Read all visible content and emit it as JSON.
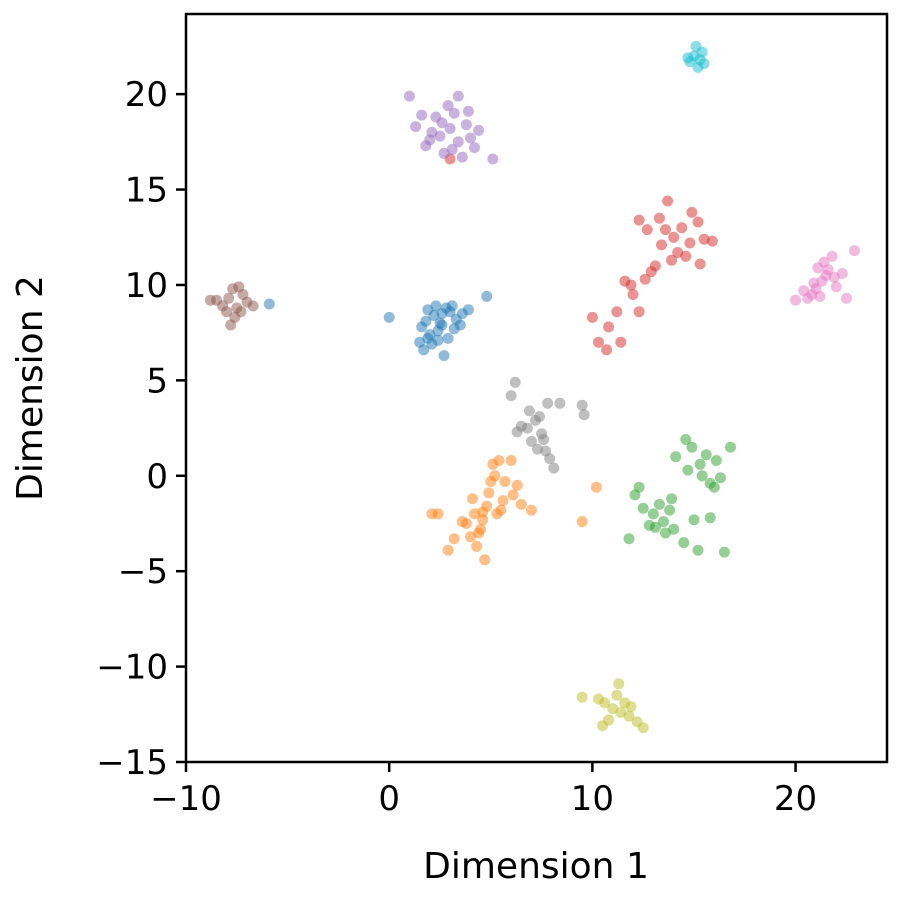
{
  "chart_data": {
    "type": "scatter",
    "title": "",
    "xlabel": "Dimension 1",
    "ylabel": "Dimension 2",
    "xlim": [
      -10,
      24.5
    ],
    "ylim": [
      -15,
      24.2
    ],
    "xticks": [
      -10,
      0,
      10,
      20
    ],
    "xtick_labels": [
      "−10",
      "0",
      "10",
      "20"
    ],
    "yticks": [
      -15,
      -10,
      -5,
      0,
      5,
      10,
      15,
      20
    ],
    "ytick_labels": [
      "−15",
      "−10",
      "−5",
      "0",
      "5",
      "10",
      "15",
      "20"
    ],
    "grid": false,
    "marker_opacity": 0.5,
    "series": [
      {
        "color": "#1f77b4",
        "points": [
          [
            1.8,
            8.1
          ],
          [
            2.2,
            8.4
          ],
          [
            2.6,
            7.9
          ],
          [
            3.0,
            8.6
          ],
          [
            2.4,
            7.6
          ],
          [
            3.3,
            8.2
          ],
          [
            2.0,
            7.4
          ],
          [
            2.8,
            8.8
          ],
          [
            1.6,
            7.8
          ],
          [
            3.6,
            8.5
          ],
          [
            2.5,
            8.0
          ],
          [
            2.9,
            7.2
          ],
          [
            1.9,
            8.7
          ],
          [
            3.2,
            7.7
          ],
          [
            2.1,
            6.9
          ],
          [
            1.5,
            7.0
          ],
          [
            2.7,
            6.3
          ],
          [
            1.7,
            6.6
          ],
          [
            3.9,
            8.7
          ],
          [
            0.0,
            8.3
          ],
          [
            -5.9,
            9.0
          ],
          [
            4.8,
            9.4
          ],
          [
            2.3,
            8.9
          ],
          [
            3.5,
            7.9
          ],
          [
            2.6,
            8.5
          ],
          [
            1.9,
            7.2
          ],
          [
            3.1,
            8.9
          ],
          [
            2.4,
            7.1
          ]
        ]
      },
      {
        "color": "#ff7f0e",
        "points": [
          [
            4.2,
            -2.0
          ],
          [
            4.5,
            -2.8
          ],
          [
            4.8,
            -1.6
          ],
          [
            4.0,
            -3.2
          ],
          [
            4.6,
            -2.3
          ],
          [
            4.9,
            -0.9
          ],
          [
            5.2,
            0.0
          ],
          [
            5.4,
            0.8
          ],
          [
            5.0,
            -0.3
          ],
          [
            4.3,
            -3.7
          ],
          [
            4.7,
            -4.4
          ],
          [
            3.8,
            -2.5
          ],
          [
            5.6,
            -1.3
          ],
          [
            6.1,
            -1.0
          ],
          [
            6.5,
            -1.5
          ],
          [
            7.0,
            -1.8
          ],
          [
            6.0,
            0.8
          ],
          [
            6.3,
            -0.5
          ],
          [
            2.4,
            -2.0
          ],
          [
            2.1,
            -2.0
          ],
          [
            2.9,
            -3.9
          ],
          [
            3.6,
            -2.4
          ],
          [
            4.1,
            -1.2
          ],
          [
            5.3,
            -2.0
          ],
          [
            5.7,
            -0.3
          ],
          [
            4.4,
            -3.0
          ],
          [
            5.1,
            0.6
          ],
          [
            3.2,
            -3.3
          ],
          [
            9.5,
            -2.4
          ],
          [
            10.2,
            -0.6
          ],
          [
            4.6,
            -1.9
          ],
          [
            5.5,
            -1.8
          ]
        ]
      },
      {
        "color": "#2ca02c",
        "points": [
          [
            13.0,
            -2.0
          ],
          [
            13.5,
            -2.4
          ],
          [
            13.8,
            -1.8
          ],
          [
            12.8,
            -2.6
          ],
          [
            13.3,
            -1.5
          ],
          [
            14.0,
            -2.8
          ],
          [
            13.6,
            -3.0
          ],
          [
            12.5,
            -1.7
          ],
          [
            14.5,
            -3.5
          ],
          [
            15.2,
            -3.9
          ],
          [
            15.0,
            -2.3
          ],
          [
            15.8,
            -2.2
          ],
          [
            15.4,
            0.0
          ],
          [
            15.8,
            -0.4
          ],
          [
            16.3,
            -0.1
          ],
          [
            16.8,
            1.5
          ],
          [
            16.1,
            0.8
          ],
          [
            14.7,
            0.3
          ],
          [
            14.6,
            1.9
          ],
          [
            14.1,
            1.0
          ],
          [
            15.6,
            1.1
          ],
          [
            16.5,
            -4.0
          ],
          [
            11.8,
            -3.3
          ],
          [
            12.1,
            -1.0
          ],
          [
            16.0,
            -0.6
          ],
          [
            12.3,
            -0.6
          ],
          [
            14.9,
            1.5
          ],
          [
            13.9,
            -1.2
          ],
          [
            15.3,
            0.6
          ],
          [
            13.1,
            -2.7
          ]
        ]
      },
      {
        "color": "#d62728",
        "points": [
          [
            14.0,
            12.5
          ],
          [
            14.4,
            13.0
          ],
          [
            14.8,
            12.2
          ],
          [
            13.6,
            12.9
          ],
          [
            15.2,
            13.3
          ],
          [
            14.2,
            11.7
          ],
          [
            13.3,
            13.5
          ],
          [
            15.5,
            12.4
          ],
          [
            14.9,
            13.8
          ],
          [
            13.9,
            11.3
          ],
          [
            12.7,
            12.9
          ],
          [
            12.3,
            13.4
          ],
          [
            13.1,
            11.0
          ],
          [
            12.6,
            10.3
          ],
          [
            11.9,
            10.0
          ],
          [
            12.3,
            8.6
          ],
          [
            11.2,
            8.6
          ],
          [
            10.8,
            7.8
          ],
          [
            10.0,
            8.3
          ],
          [
            10.7,
            6.6
          ],
          [
            11.4,
            7.0
          ],
          [
            10.3,
            7.0
          ],
          [
            11.6,
            10.2
          ],
          [
            12.9,
            10.7
          ],
          [
            13.7,
            14.4
          ],
          [
            15.9,
            12.3
          ],
          [
            12.0,
            9.5
          ],
          [
            14.6,
            11.5
          ],
          [
            3.0,
            16.6
          ],
          [
            15.3,
            11.1
          ],
          [
            13.4,
            12.1
          ]
        ]
      },
      {
        "color": "#9467bd",
        "points": [
          [
            2.5,
            17.8
          ],
          [
            3.0,
            18.2
          ],
          [
            3.4,
            17.5
          ],
          [
            2.1,
            18.0
          ],
          [
            3.8,
            18.4
          ],
          [
            2.7,
            16.9
          ],
          [
            3.2,
            19.0
          ],
          [
            1.8,
            17.3
          ],
          [
            4.0,
            17.7
          ],
          [
            2.3,
            18.8
          ],
          [
            3.6,
            16.7
          ],
          [
            2.9,
            19.4
          ],
          [
            1.6,
            18.9
          ],
          [
            4.4,
            18.1
          ],
          [
            1.3,
            18.3
          ],
          [
            1.0,
            19.9
          ],
          [
            3.4,
            19.9
          ],
          [
            5.1,
            16.6
          ],
          [
            4.2,
            17.2
          ],
          [
            2.0,
            17.6
          ],
          [
            3.1,
            17.1
          ],
          [
            2.6,
            18.5
          ],
          [
            3.9,
            19.1
          ]
        ]
      },
      {
        "color": "#8c564b",
        "points": [
          [
            -7.9,
            9.3
          ],
          [
            -7.5,
            8.8
          ],
          [
            -8.2,
            8.9
          ],
          [
            -7.2,
            9.5
          ],
          [
            -7.7,
            9.8
          ],
          [
            -8.5,
            9.2
          ],
          [
            -7.6,
            8.3
          ],
          [
            -7.0,
            9.1
          ],
          [
            -8.0,
            8.6
          ],
          [
            -7.3,
            8.6
          ],
          [
            -7.8,
            7.9
          ],
          [
            -6.7,
            8.9
          ],
          [
            -8.8,
            9.2
          ],
          [
            -7.4,
            9.9
          ]
        ]
      },
      {
        "color": "#e377c2",
        "points": [
          [
            21.3,
            10.2
          ],
          [
            21.6,
            10.8
          ],
          [
            21.0,
            9.8
          ],
          [
            21.9,
            10.4
          ],
          [
            20.8,
            9.5
          ],
          [
            21.4,
            11.2
          ],
          [
            22.0,
            9.9
          ],
          [
            20.6,
            9.3
          ],
          [
            21.8,
            11.5
          ],
          [
            21.2,
            9.4
          ],
          [
            22.3,
            10.6
          ],
          [
            20.4,
            9.7
          ],
          [
            22.9,
            11.8
          ],
          [
            20.0,
            9.2
          ],
          [
            22.5,
            9.3
          ],
          [
            21.5,
            10.5
          ],
          [
            21.1,
            10.9
          ],
          [
            20.9,
            10.1
          ]
        ]
      },
      {
        "color": "#7f7f7f",
        "points": [
          [
            6.8,
            2.5
          ],
          [
            7.2,
            2.9
          ],
          [
            6.5,
            2.6
          ],
          [
            7.5,
            2.2
          ],
          [
            7.0,
            1.8
          ],
          [
            7.4,
            3.1
          ],
          [
            6.3,
            2.3
          ],
          [
            7.7,
            1.3
          ],
          [
            7.9,
            0.9
          ],
          [
            8.1,
            0.4
          ],
          [
            6.0,
            4.2
          ],
          [
            6.2,
            4.9
          ],
          [
            7.8,
            3.8
          ],
          [
            8.4,
            3.8
          ],
          [
            9.5,
            3.7
          ],
          [
            9.6,
            3.2
          ],
          [
            7.3,
            1.4
          ],
          [
            7.6,
            1.9
          ],
          [
            6.9,
            3.4
          ]
        ]
      },
      {
        "color": "#bcbd22",
        "points": [
          [
            11.0,
            -12.2
          ],
          [
            11.4,
            -12.4
          ],
          [
            10.6,
            -11.9
          ],
          [
            11.8,
            -12.6
          ],
          [
            10.3,
            -11.7
          ],
          [
            12.2,
            -12.9
          ],
          [
            11.2,
            -11.5
          ],
          [
            10.8,
            -12.8
          ],
          [
            11.6,
            -11.9
          ],
          [
            9.5,
            -11.6
          ],
          [
            12.5,
            -13.2
          ],
          [
            11.3,
            -10.9
          ],
          [
            10.5,
            -13.1
          ],
          [
            11.9,
            -12.1
          ]
        ]
      },
      {
        "color": "#17becf",
        "points": [
          [
            15.0,
            22.0
          ],
          [
            15.3,
            21.8
          ],
          [
            14.8,
            21.7
          ],
          [
            15.4,
            22.2
          ],
          [
            15.1,
            22.5
          ],
          [
            14.7,
            21.9
          ],
          [
            15.2,
            21.4
          ],
          [
            15.5,
            21.6
          ]
        ]
      }
    ]
  }
}
